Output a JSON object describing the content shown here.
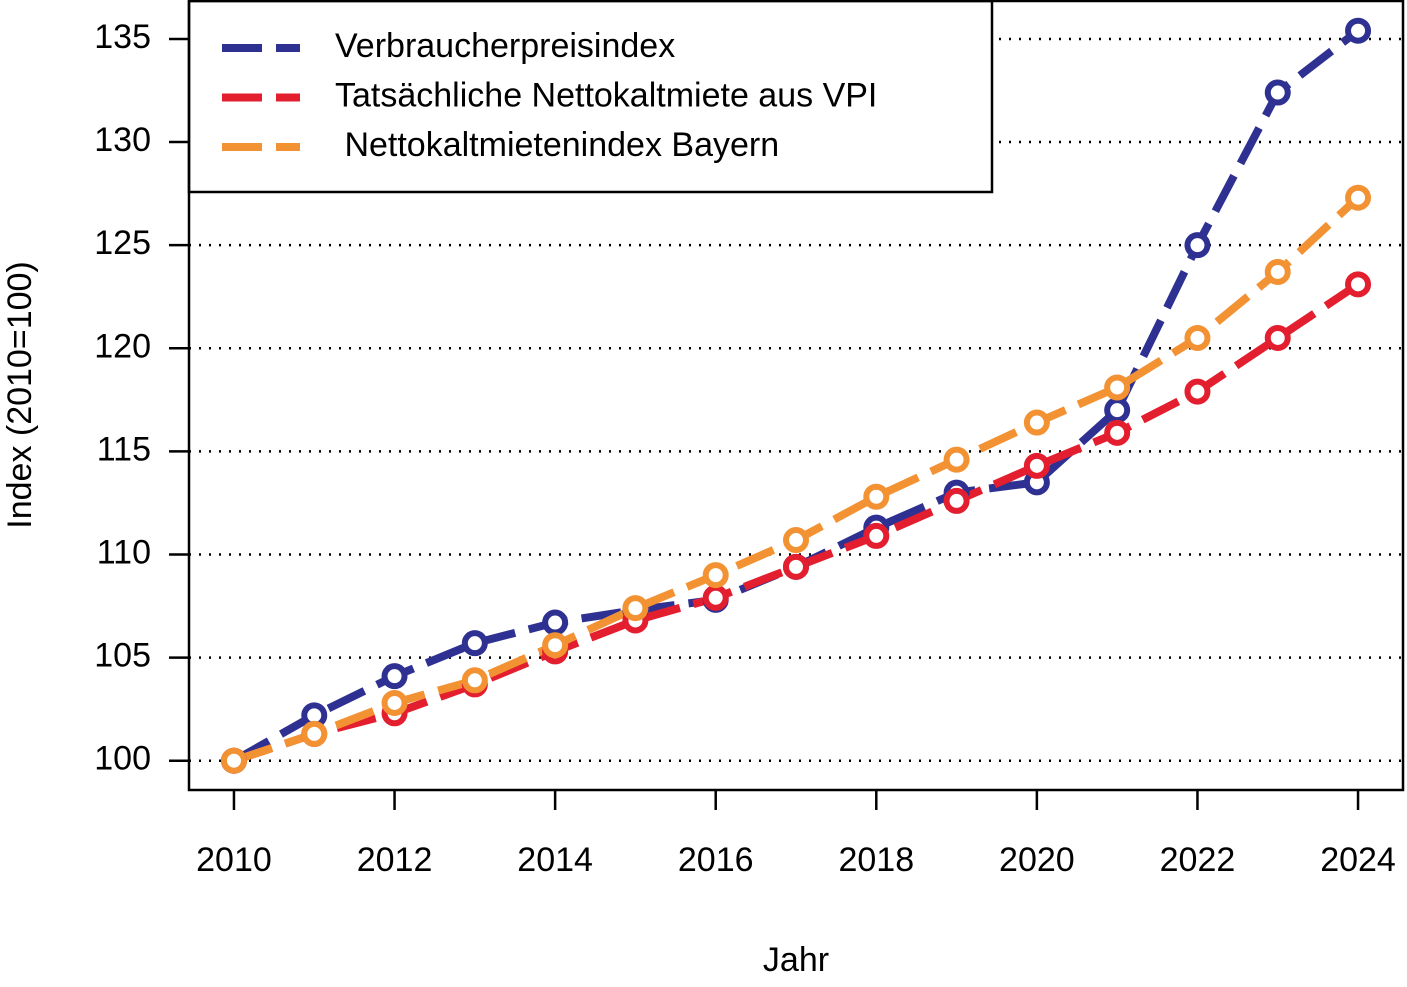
{
  "chart_data": {
    "type": "line",
    "x_label": "Jahr",
    "y_label": "Index (2010=100)",
    "x": [
      2010,
      2011,
      2012,
      2013,
      2014,
      2015,
      2016,
      2017,
      2018,
      2019,
      2020,
      2021,
      2022,
      2023,
      2024
    ],
    "series": [
      {
        "name": "Verbraucherpreisindex",
        "color": "#2e3192",
        "values": [
          100,
          102.2,
          104.1,
          105.7,
          106.7,
          107.3,
          107.8,
          109.4,
          111.3,
          113.0,
          113.5,
          117.0,
          125.0,
          132.4,
          135.4
        ]
      },
      {
        "name": "Tatsächliche Nettokaltmiete aus VPI",
        "color": "#e31e2e",
        "values": [
          100,
          101.3,
          102.3,
          103.7,
          105.3,
          106.8,
          107.9,
          109.4,
          110.9,
          112.6,
          114.3,
          115.9,
          117.9,
          120.5,
          123.1
        ]
      },
      {
        "name": " Nettokaltmietenindex Bayern",
        "color": "#f39233",
        "values": [
          100,
          101.3,
          102.8,
          103.9,
          105.6,
          107.4,
          109.0,
          110.7,
          112.8,
          114.6,
          116.4,
          118.1,
          120.5,
          123.7,
          127.3
        ]
      }
    ],
    "xlim": [
      2009.44,
      2024.56
    ],
    "xticks": [
      2010,
      2012,
      2014,
      2016,
      2018,
      2020,
      2022,
      2024
    ],
    "ylim": [
      98.58,
      136.84
    ],
    "yticks": [
      100,
      105,
      110,
      115,
      120,
      125,
      130,
      135
    ],
    "grid": true,
    "legend": "top-left"
  }
}
